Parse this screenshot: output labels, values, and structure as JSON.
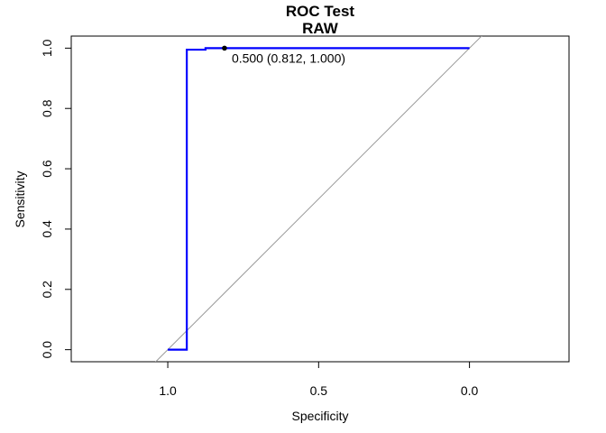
{
  "chart_data": {
    "type": "line",
    "title": "ROC Test",
    "subtitle": "RAW",
    "xlabel": "Specificity",
    "ylabel": "Sensitivity",
    "x_reversed": true,
    "xlim": [
      1.32,
      -0.33
    ],
    "ylim": [
      -0.04,
      1.04
    ],
    "x_ticks": [
      {
        "value": 1.0,
        "label": "1.0"
      },
      {
        "value": 0.5,
        "label": "0.5"
      },
      {
        "value": 0.0,
        "label": "0.0"
      }
    ],
    "y_ticks": [
      {
        "value": 0.0,
        "label": "0.0"
      },
      {
        "value": 0.2,
        "label": "0.2"
      },
      {
        "value": 0.4,
        "label": "0.4"
      },
      {
        "value": 0.6,
        "label": "0.6"
      },
      {
        "value": 0.8,
        "label": "0.8"
      },
      {
        "value": 1.0,
        "label": "1.0"
      }
    ],
    "grid": false,
    "series": [
      {
        "color": "#0000ff",
        "step": true,
        "points": [
          {
            "x": 1.0,
            "y": 0.0
          },
          {
            "x": 0.937,
            "y": 0.0
          },
          {
            "x": 0.937,
            "y": 0.995
          },
          {
            "x": 0.875,
            "y": 0.995
          },
          {
            "x": 0.875,
            "y": 1.0
          },
          {
            "x": 0.812,
            "y": 1.0
          },
          {
            "x": 0.0,
            "y": 1.0
          }
        ]
      }
    ],
    "reference_line": {
      "color": "#999999",
      "from": {
        "x": 1.0,
        "y": 0.0
      },
      "to": {
        "x": 0.0,
        "y": 1.0
      }
    },
    "threshold_point": {
      "x": 0.812,
      "y": 1.0,
      "label": "0.500 (0.812, 1.000)"
    }
  }
}
